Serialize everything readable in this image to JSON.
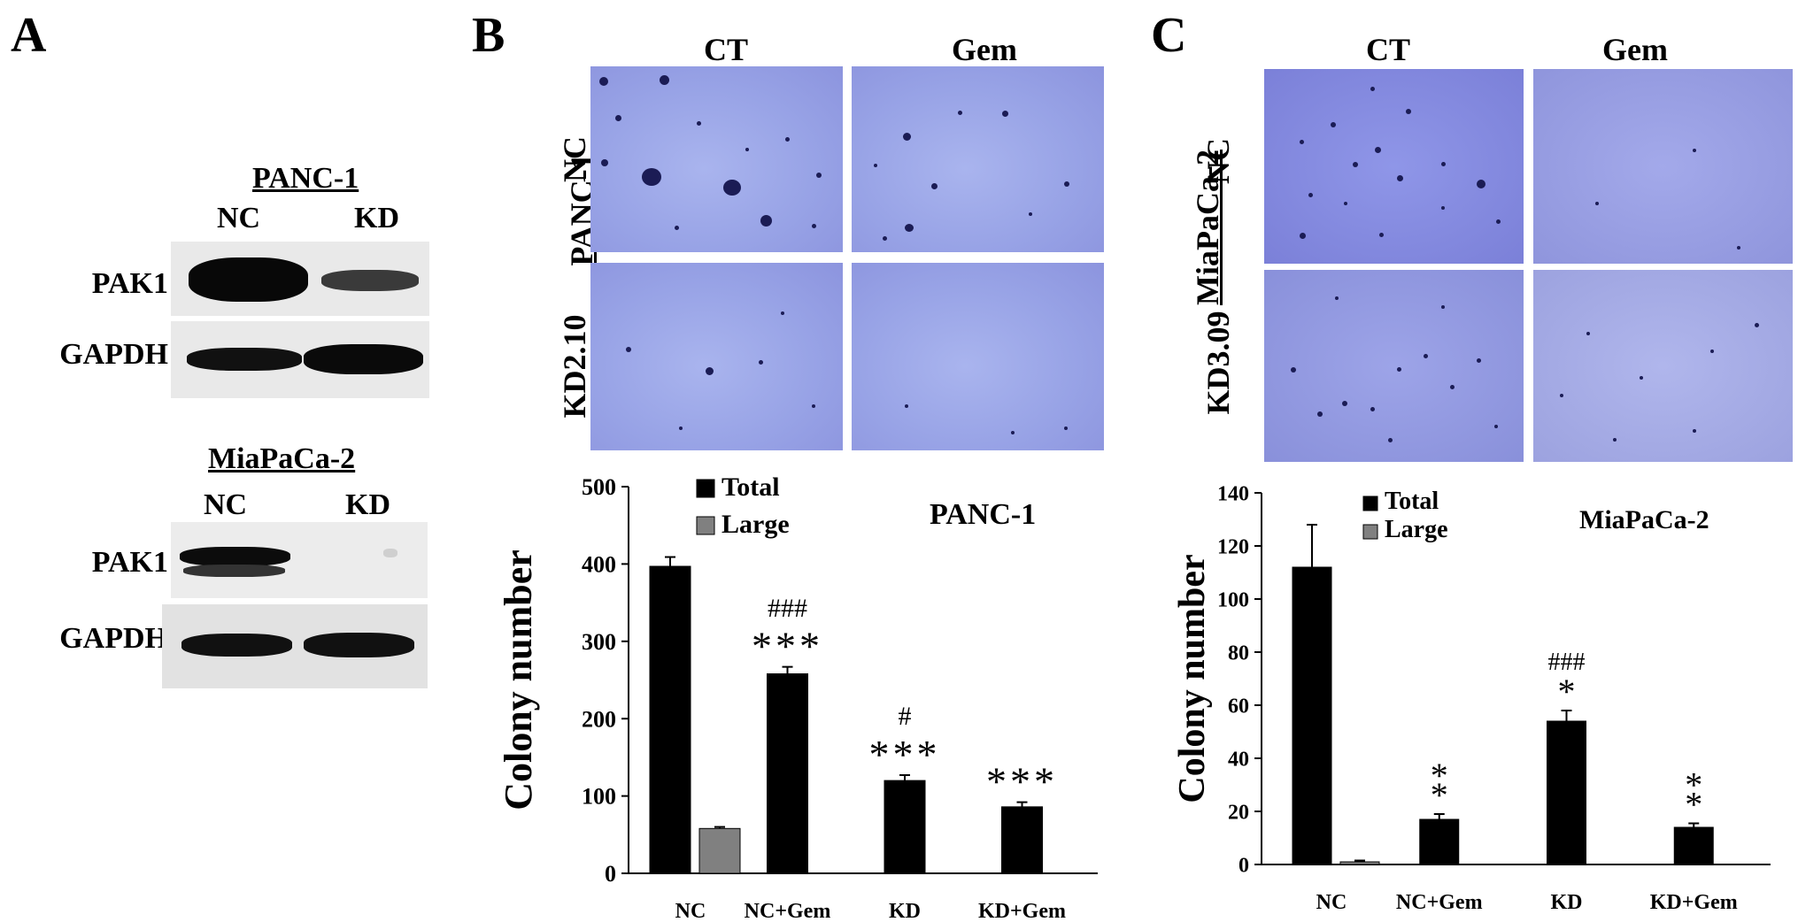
{
  "panel_letters": [
    "A",
    "B",
    "C"
  ],
  "panel_a": {
    "blots": [
      {
        "title": "PANC-1",
        "lanes": [
          "NC",
          "KD"
        ],
        "rows": [
          "PAK1",
          "GAPDH"
        ]
      },
      {
        "title": "MiaPaCa-2",
        "lanes": [
          "NC",
          "KD"
        ],
        "rows": [
          "PAK1",
          "GAPDH"
        ]
      }
    ]
  },
  "panel_b": {
    "col_labels": [
      "CT",
      "Gem"
    ],
    "cell_line": "PANC-1",
    "row_labels": [
      "NC",
      "KD2.10"
    ]
  },
  "panel_c": {
    "col_labels": [
      "CT",
      "Gem"
    ],
    "cell_line": "MiaPaCa-2",
    "row_labels": [
      "NC",
      "KD3.09"
    ]
  },
  "colors": {
    "total": "#000000",
    "large": "#808080",
    "stain": "#98a3e6",
    "colony": "#1b1c55"
  },
  "chart_data": [
    {
      "type": "bar",
      "title": "PANC-1",
      "ylabel": "Colony number",
      "xlabel": "",
      "ylim": [
        0,
        500
      ],
      "yticks": [
        0,
        100,
        200,
        300,
        400,
        500
      ],
      "categories": [
        "NC",
        "NC+Gem",
        "KD",
        "KD+Gem"
      ],
      "series": [
        {
          "name": "Total",
          "values": [
            397,
            258,
            120,
            86
          ],
          "errors": [
            12,
            9,
            7,
            6
          ]
        },
        {
          "name": "Large",
          "values": [
            58,
            null,
            null,
            null
          ],
          "errors": [
            2,
            null,
            null,
            null
          ]
        }
      ],
      "annotations": [
        {
          "category": "NC+Gem",
          "lines": [
            "###",
            "***"
          ]
        },
        {
          "category": "KD",
          "lines": [
            "#",
            "***"
          ]
        },
        {
          "category": "KD+Gem",
          "lines": [
            "***"
          ]
        }
      ],
      "legend": "top-left"
    },
    {
      "type": "bar",
      "title": "MiaPaCa-2",
      "ylabel": "Colony number",
      "xlabel": "",
      "ylim": [
        0,
        140
      ],
      "yticks": [
        0,
        20,
        40,
        60,
        80,
        100,
        120,
        140
      ],
      "categories": [
        "NC",
        "NC+Gem",
        "KD",
        "KD+Gem"
      ],
      "series": [
        {
          "name": "Total",
          "values": [
            112,
            17,
            54,
            14
          ],
          "errors": [
            16,
            2,
            4,
            1.5
          ]
        },
        {
          "name": "Large",
          "values": [
            1,
            null,
            null,
            null
          ],
          "errors": [
            0.5,
            null,
            null,
            null
          ]
        }
      ],
      "annotations": [
        {
          "category": "NC+Gem",
          "lines": [
            "**"
          ]
        },
        {
          "category": "KD",
          "lines": [
            "###",
            "*"
          ]
        },
        {
          "category": "KD+Gem",
          "lines": [
            "**"
          ]
        }
      ],
      "legend": "top-left"
    }
  ]
}
